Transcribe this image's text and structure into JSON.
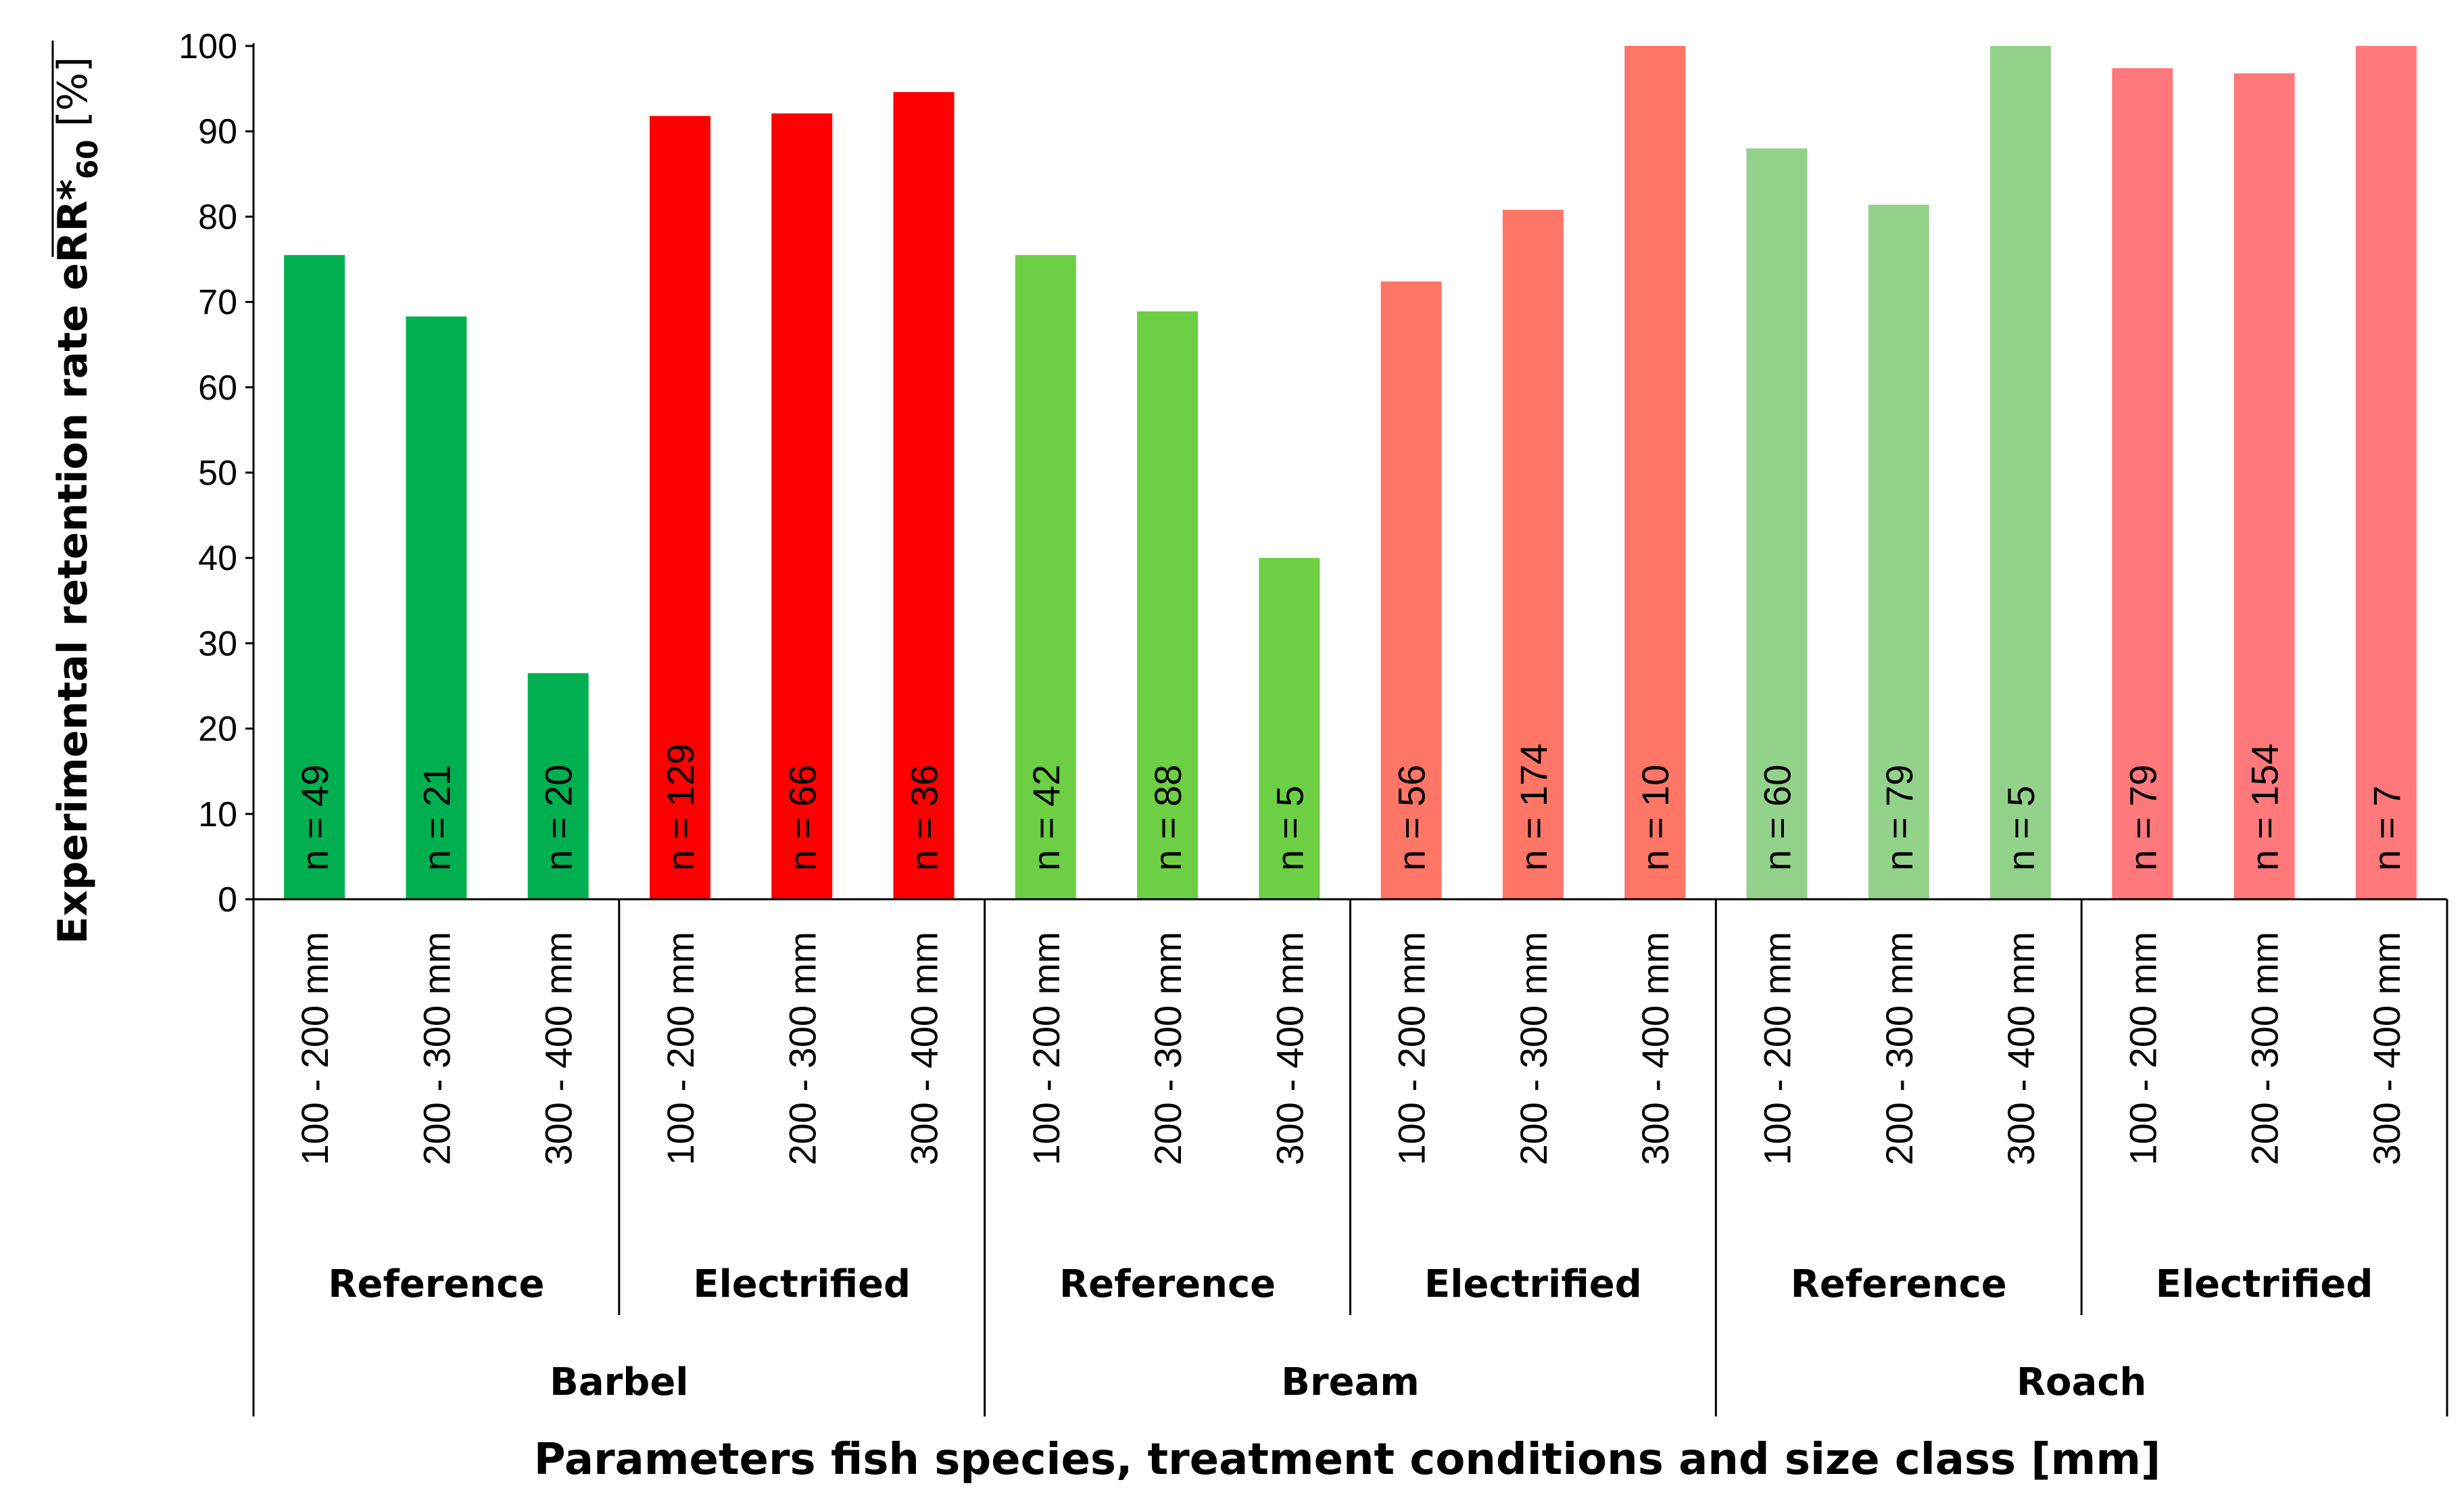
{
  "chart_data": {
    "type": "bar",
    "title": "",
    "ylabel_main": "Experimental retention rate eRR*",
    "ylabel_sub": "60",
    "ylabel_unit": " [%]",
    "xlabel": "Parameters fish species, treatment conditions and size class [mm]",
    "ylim": [
      0,
      100
    ],
    "yticks": [
      0,
      10,
      20,
      30,
      40,
      50,
      60,
      70,
      80,
      90,
      100
    ],
    "grid": false,
    "categories": [
      "100 - 200 mm",
      "200 - 300 mm",
      "300 - 400 mm",
      "100 - 200 mm",
      "200 - 300 mm",
      "300 - 400 mm",
      "100 - 200 mm",
      "200 - 300 mm",
      "300 - 400 mm",
      "100 - 200 mm",
      "200 - 300 mm",
      "300 - 400 mm",
      "100 - 200 mm",
      "200 - 300 mm",
      "300 - 400 mm",
      "100 - 200 mm",
      "200 - 300 mm",
      "300 - 400 mm"
    ],
    "values": [
      75.5,
      68.3,
      26.5,
      91.8,
      92.1,
      94.6,
      75.5,
      68.9,
      40.0,
      72.4,
      80.8,
      100,
      88.0,
      81.4,
      100,
      97.4,
      96.8,
      100
    ],
    "sample_sizes": [
      "n = 49",
      "n = 21",
      "n = 20",
      "n = 129",
      "n = 66",
      "n = 36",
      "n = 42",
      "n = 88",
      "n = 5",
      "n = 56",
      "n = 174",
      "n = 10",
      "n = 60",
      "n = 79",
      "n = 5",
      "n = 79",
      "n = 154",
      "n = 7"
    ],
    "colors": [
      "#00b050",
      "#00b050",
      "#00b050",
      "#ff0000",
      "#ff0000",
      "#ff0000",
      "#6ccf44",
      "#6ccf44",
      "#6ccf44",
      "#ff7566",
      "#ff7566",
      "#ff7566",
      "#93d28a",
      "#93d28a",
      "#93d28a",
      "#ff787c",
      "#ff787c",
      "#ff787c"
    ],
    "treatment_groups": [
      "Reference",
      "Electrified",
      "Reference",
      "Electrified",
      "Reference",
      "Electrified"
    ],
    "species_groups": [
      "Barbel",
      "Bream",
      "Roach"
    ]
  }
}
